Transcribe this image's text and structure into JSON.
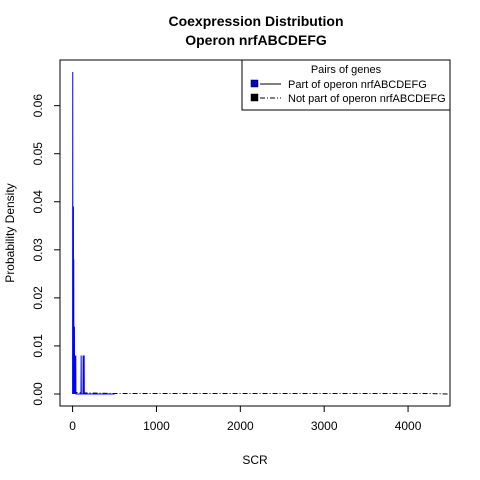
{
  "chart_data": {
    "type": "line",
    "title": "Coexpression Distribution",
    "subtitle": "Operon nrfABCDEFG",
    "xlabel": "SCR",
    "ylabel": "Probability Density",
    "xlim": [
      -150,
      4500
    ],
    "ylim": [
      -0.0025,
      0.0695
    ],
    "xticks": [
      0,
      1000,
      2000,
      3000,
      4000
    ],
    "yticks": [
      0.0,
      0.01,
      0.02,
      0.03,
      0.04,
      0.05,
      0.06
    ],
    "ytick_labels": [
      "0.00",
      "0.01",
      "0.02",
      "0.03",
      "0.04",
      "0.05",
      "0.06"
    ],
    "grid": false,
    "legend": {
      "title": "Pairs of genes",
      "position": "top-right",
      "entries": [
        {
          "label": "Part of operon nrfABCDEFG",
          "fill": "#0000cc",
          "line_style": "solid"
        },
        {
          "label": "Not part of operon nrfABCDEFG",
          "fill": "#000000",
          "line_style": "dashed"
        }
      ]
    },
    "series": [
      {
        "name": "Part of operon nrfABCDEFG",
        "color": "#0000ff",
        "line_style": "solid",
        "x": [
          0,
          2,
          4,
          6,
          8,
          10,
          12,
          14,
          16,
          18,
          20,
          22,
          24,
          26,
          28,
          30,
          32,
          34,
          36,
          38,
          40,
          42,
          44,
          50,
          60,
          70,
          80,
          90,
          100,
          102,
          104,
          106,
          110,
          120,
          124,
          126,
          128,
          132,
          136,
          138,
          140,
          144,
          148,
          150,
          500
        ],
        "y": [
          0,
          0.067,
          0,
          0.039,
          0.028,
          0.039,
          0,
          0.028,
          0,
          0.014,
          0.008,
          0.014,
          0,
          0.008,
          0,
          0.008,
          0,
          0.008,
          0,
          0.008,
          0,
          0,
          0,
          0,
          0,
          0,
          0,
          0,
          0,
          0.008,
          0,
          0,
          0,
          0,
          0,
          0.008,
          0,
          0,
          0,
          0.008,
          0,
          0,
          0,
          0,
          0
        ]
      },
      {
        "name": "Not part of operon nrfABCDEFG",
        "color": "#000000",
        "line_style": "dashed",
        "x": [
          0,
          200,
          500,
          1000,
          2000,
          3000,
          3500,
          4000,
          4200,
          4500
        ],
        "y": [
          0.0003,
          0.0002,
          0.0001,
          0.0001,
          0.0001,
          0.0001,
          0.0001,
          0.0001,
          0.0001,
          0
        ]
      }
    ]
  }
}
